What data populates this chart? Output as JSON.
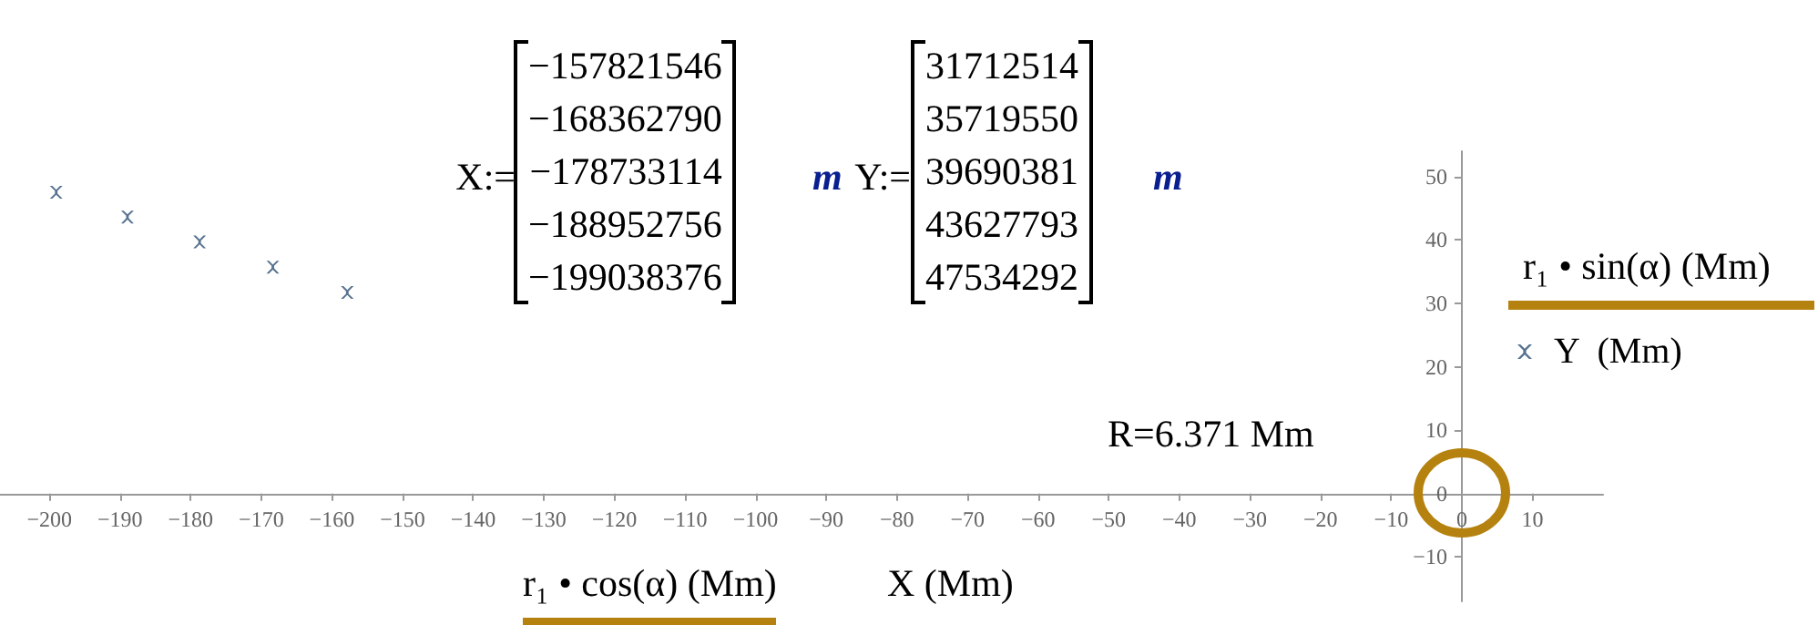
{
  "chart_data": {
    "type": "scatter",
    "series": [
      {
        "name": "Y  (Mm)",
        "color": "#2d4f73",
        "marker": "cross",
        "x": [
          -157.821546,
          -168.36279,
          -178.733114,
          -188.952756,
          -199.038376
        ],
        "values": [
          31.712514,
          35.71955,
          39.690381,
          43.627793,
          47.534292
        ]
      }
    ],
    "xlim": [
      -207,
      20
    ],
    "xticks": [
      -200,
      -190,
      -180,
      -170,
      -160,
      -150,
      -140,
      -130,
      -120,
      -110,
      -100,
      -90,
      -80,
      -70,
      -60,
      -50,
      -40,
      -30,
      -20,
      -10,
      0,
      10
    ],
    "ylim": [
      -17,
      54
    ],
    "yticks": [
      -10,
      0,
      10,
      20,
      30,
      40,
      50
    ],
    "grid": false,
    "legend": "right",
    "annotations": [
      "X:=",
      "−157821546",
      "−168362790",
      "−178733114",
      "−188952756",
      "−199038376",
      "m",
      "Y:=",
      "31712514",
      "35719550",
      "39690381",
      "43627793",
      "47534292",
      "m",
      "R=6.371 Mm",
      "r₁ • cos(α)  (Mm)",
      "X  (Mm)",
      "r₁ • sin(α)  (Mm)"
    ]
  }
}
